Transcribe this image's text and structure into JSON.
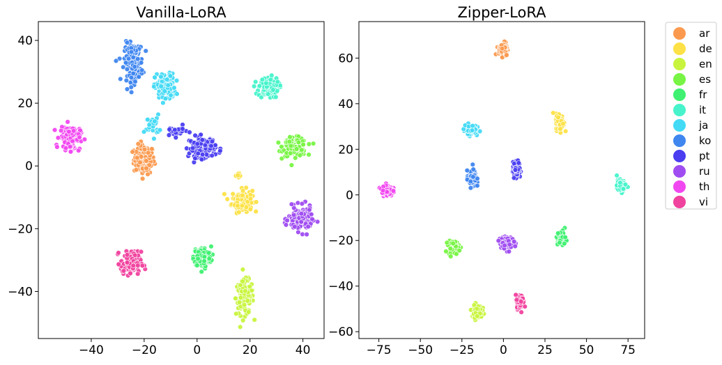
{
  "chart_data": [
    {
      "type": "scatter",
      "title": "Vanilla-LoRA",
      "xlim": [
        -60,
        48
      ],
      "ylim": [
        -55,
        46
      ],
      "xticks": [
        -40,
        -20,
        0,
        20,
        40
      ],
      "yticks": [
        -40,
        -20,
        0,
        20,
        40
      ],
      "clusters": [
        {
          "language": "ar",
          "center": [
            -20,
            2
          ],
          "spread": [
            3.5,
            4.2
          ],
          "n": 130
        },
        {
          "language": "de",
          "center": [
            17,
            -11
          ],
          "spread": [
            3.5,
            3.2
          ],
          "n": 120
        },
        {
          "language": "de",
          "center": [
            16,
            -3
          ],
          "spread": [
            1.2,
            0.8
          ],
          "n": 10
        },
        {
          "language": "en",
          "center": [
            18,
            -42
          ],
          "spread": [
            3,
            5
          ],
          "n": 140
        },
        {
          "language": "es",
          "center": [
            37,
            6
          ],
          "spread": [
            4,
            2.6
          ],
          "n": 140
        },
        {
          "language": "fr",
          "center": [
            2,
            -29
          ],
          "spread": [
            3,
            3
          ],
          "n": 130
        },
        {
          "language": "it",
          "center": [
            27,
            25
          ],
          "spread": [
            3.4,
            3
          ],
          "n": 120
        },
        {
          "language": "ja",
          "center": [
            -12,
            25
          ],
          "spread": [
            3.5,
            4
          ],
          "n": 110
        },
        {
          "language": "ja",
          "center": [
            -17,
            13
          ],
          "spread": [
            2.5,
            3
          ],
          "n": 30
        },
        {
          "language": "ko",
          "center": [
            -24,
            33
          ],
          "spread": [
            3.2,
            5.5
          ],
          "n": 150
        },
        {
          "language": "pt",
          "center": [
            2,
            6
          ],
          "spread": [
            4.5,
            3
          ],
          "n": 130
        },
        {
          "language": "pt",
          "center": [
            -8,
            11
          ],
          "spread": [
            4,
            1.5
          ],
          "n": 25
        },
        {
          "language": "ru",
          "center": [
            39,
            -17
          ],
          "spread": [
            4,
            3.5
          ],
          "n": 140
        },
        {
          "language": "th",
          "center": [
            -48,
            9
          ],
          "spread": [
            3.5,
            3.5
          ],
          "n": 130
        },
        {
          "language": "vi",
          "center": [
            -25,
            -31
          ],
          "spread": [
            3.5,
            3.3
          ],
          "n": 130
        }
      ]
    },
    {
      "type": "scatter",
      "title": "Zipper-LoRA",
      "xlim": [
        -87,
        85
      ],
      "ylim": [
        -63,
        76
      ],
      "xticks": [
        -75,
        -50,
        -25,
        0,
        25,
        50,
        75
      ],
      "yticks": [
        -60,
        -40,
        -20,
        0,
        20,
        40,
        60
      ],
      "clusters": [
        {
          "language": "ar",
          "center": [
            0,
            64
          ],
          "spread": [
            2.5,
            2.8
          ],
          "n": 90
        },
        {
          "language": "de",
          "center": [
            34,
            32
          ],
          "spread": [
            2.2,
            3.4
          ],
          "n": 90
        },
        {
          "language": "en",
          "center": [
            -16,
            -51
          ],
          "spread": [
            2.8,
            2.6
          ],
          "n": 90
        },
        {
          "language": "es",
          "center": [
            -30,
            -23
          ],
          "spread": [
            3,
            2.4
          ],
          "n": 90
        },
        {
          "language": "fr",
          "center": [
            35,
            -19
          ],
          "spread": [
            2.2,
            3
          ],
          "n": 90
        },
        {
          "language": "it",
          "center": [
            71,
            4
          ],
          "spread": [
            2.5,
            2.3
          ],
          "n": 90
        },
        {
          "language": "ja",
          "center": [
            -20,
            29
          ],
          "spread": [
            3.2,
            2
          ],
          "n": 90
        },
        {
          "language": "ko",
          "center": [
            -19,
            7
          ],
          "spread": [
            2.5,
            3.2
          ],
          "n": 90
        },
        {
          "language": "pt",
          "center": [
            8,
            11
          ],
          "spread": [
            2,
            3.3
          ],
          "n": 90
        },
        {
          "language": "ru",
          "center": [
            2,
            -21
          ],
          "spread": [
            3.8,
            2.3
          ],
          "n": 110
        },
        {
          "language": "th",
          "center": [
            -70,
            2
          ],
          "spread": [
            2.8,
            2.2
          ],
          "n": 90
        },
        {
          "language": "vi",
          "center": [
            10,
            -47
          ],
          "spread": [
            2.3,
            2.6
          ],
          "n": 90
        }
      ]
    }
  ],
  "legend": {
    "placement": "right",
    "entries": [
      {
        "label": "ar",
        "color": "#fb9a4f"
      },
      {
        "label": "de",
        "color": "#fde146"
      },
      {
        "label": "en",
        "color": "#c8f43e"
      },
      {
        "label": "es",
        "color": "#78f444"
      },
      {
        "label": "fr",
        "color": "#3ff071"
      },
      {
        "label": "it",
        "color": "#47f3cb"
      },
      {
        "label": "ja",
        "color": "#43daf5"
      },
      {
        "label": "ko",
        "color": "#3f86ef"
      },
      {
        "label": "pt",
        "color": "#4a3ef0"
      },
      {
        "label": "ru",
        "color": "#9f4cf0"
      },
      {
        "label": "th",
        "color": "#f147f0"
      },
      {
        "label": "vi",
        "color": "#f0429f"
      }
    ]
  }
}
